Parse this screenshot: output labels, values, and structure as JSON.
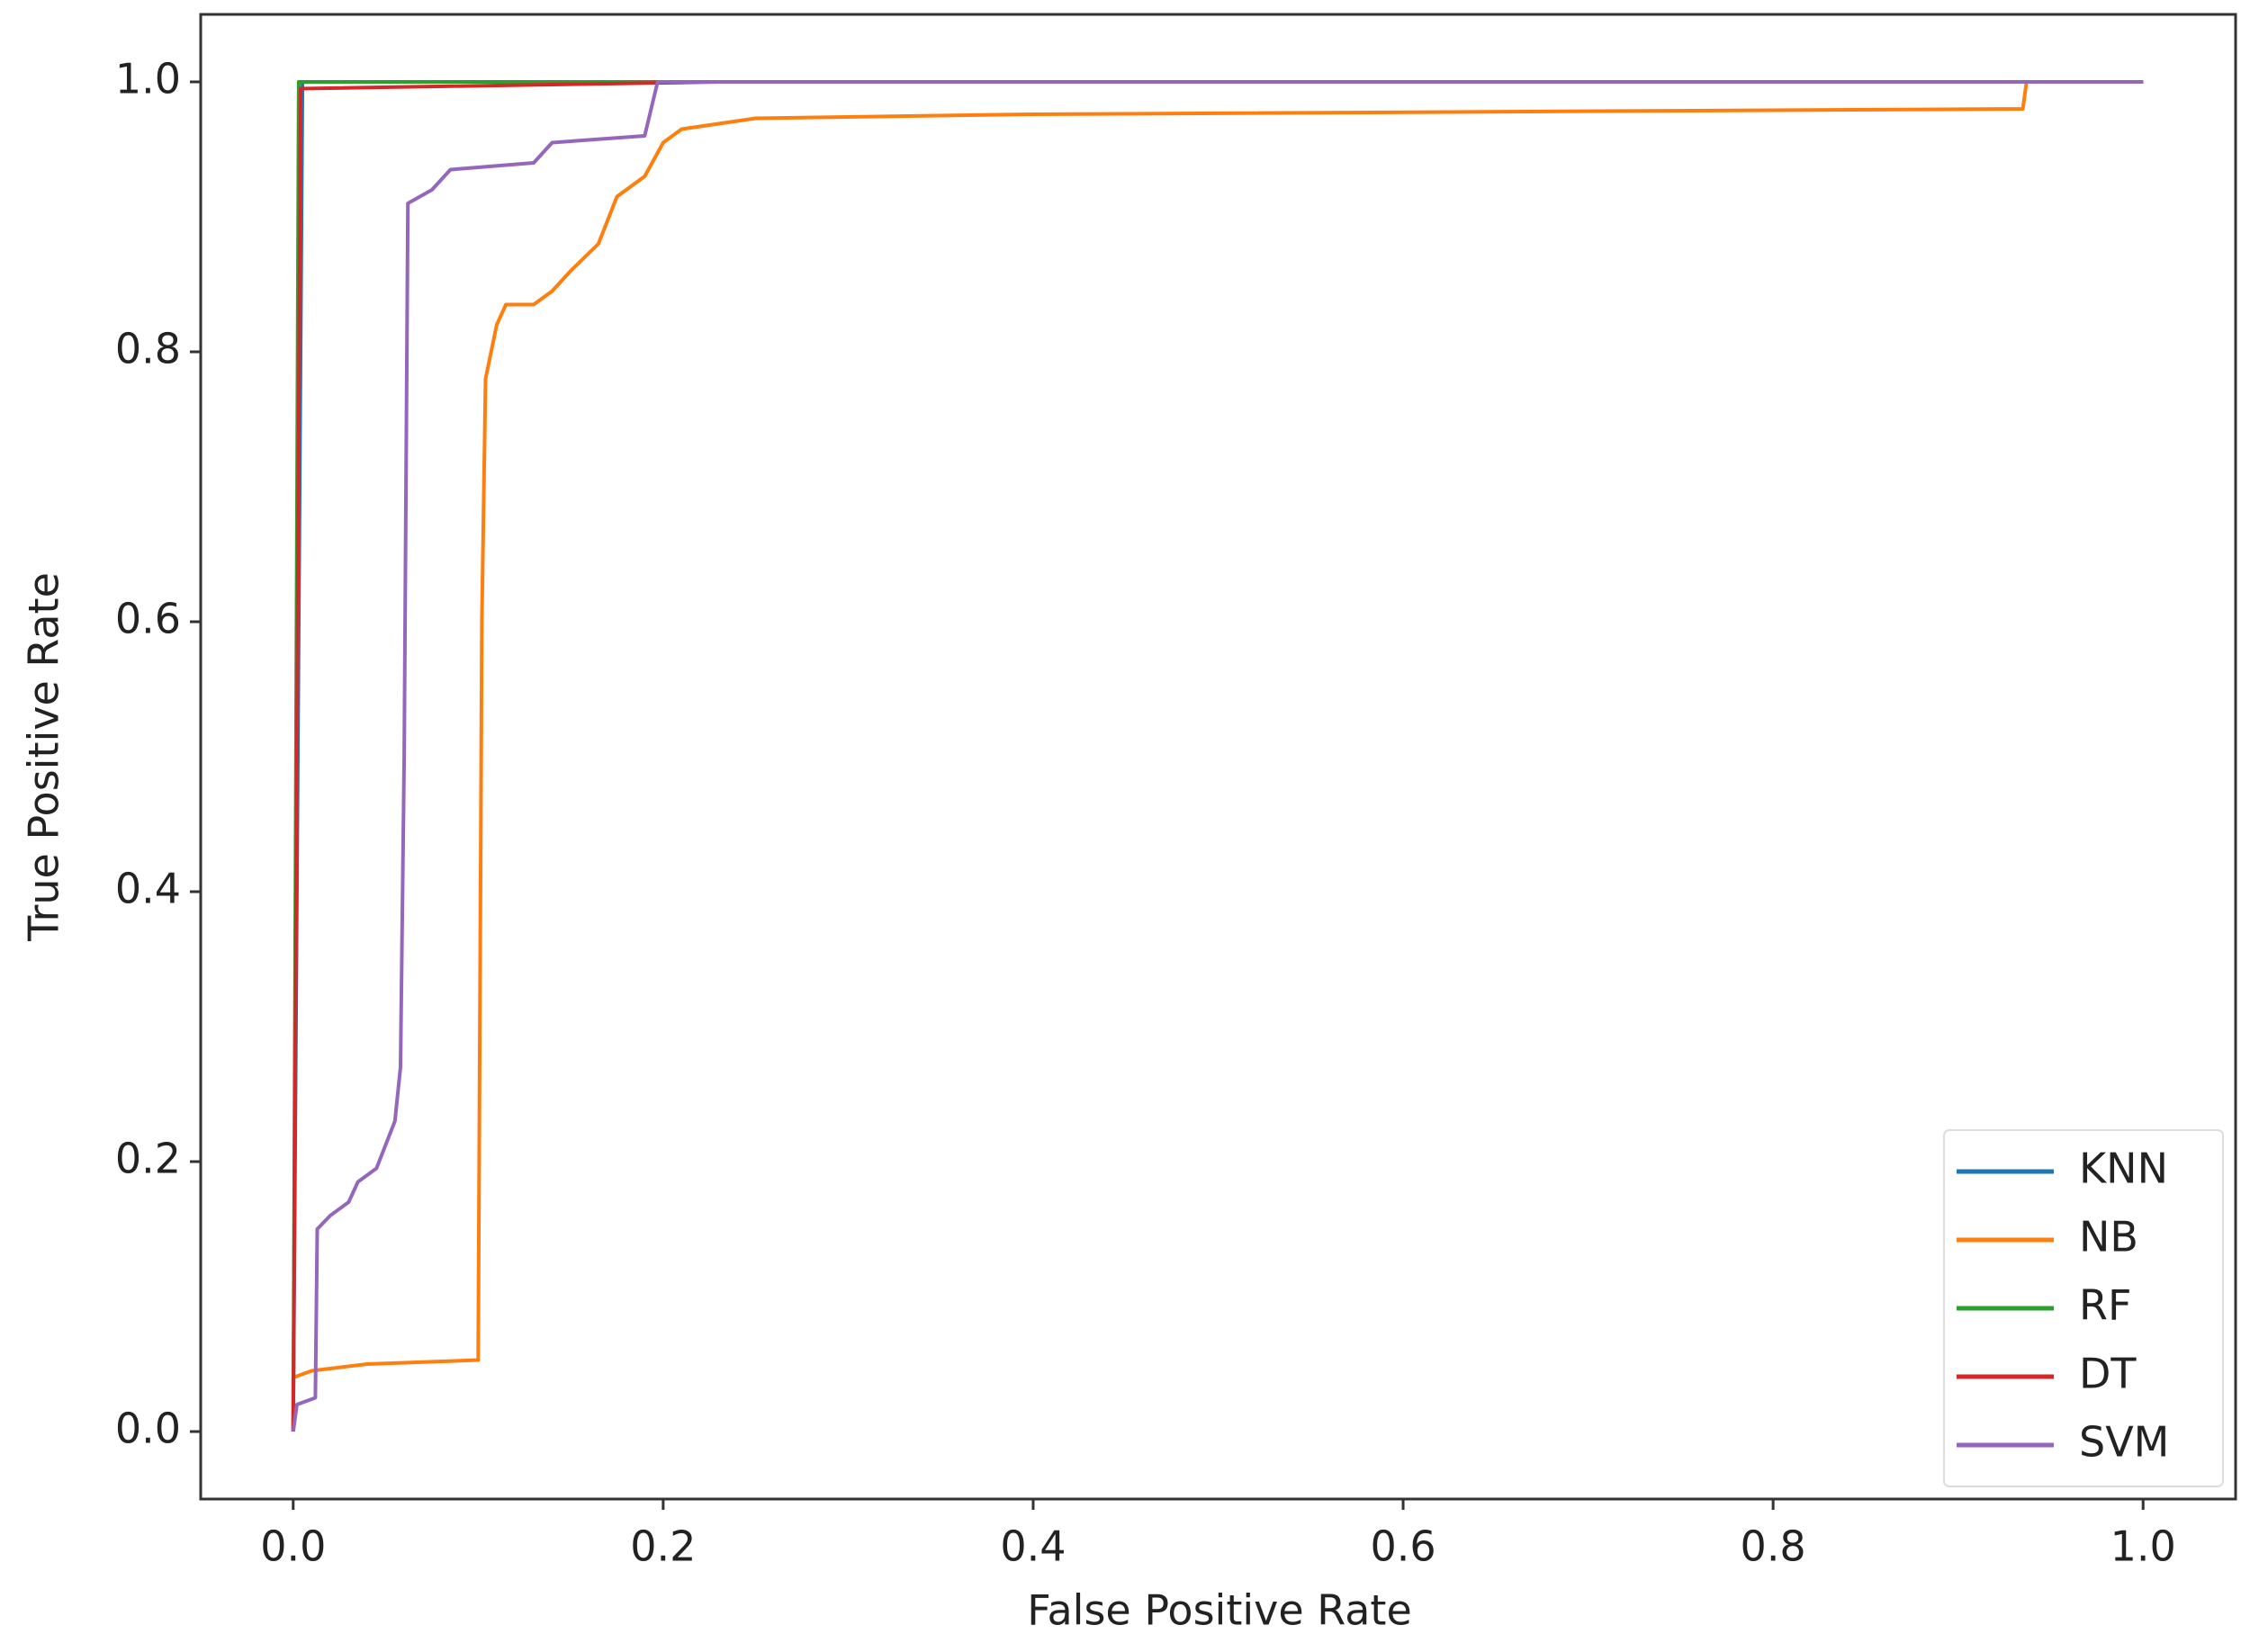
{
  "chart_data": {
    "type": "line",
    "x_label": "False Positive Rate",
    "y_label": "True Positive Rate",
    "xlim": [
      -0.05,
      1.05
    ],
    "ylim": [
      -0.05,
      1.05
    ],
    "xticks": [
      {
        "value": 0,
        "label": "0.0"
      },
      0.2,
      0.4,
      0.6,
      0.8,
      {
        "value": 1,
        "label": "1.0"
      }
    ],
    "yticks": [
      {
        "value": 0,
        "label": "0.0"
      },
      0.2,
      0.4,
      0.6,
      0.8,
      {
        "value": 1,
        "label": "1.0"
      }
    ],
    "grid": false,
    "legend": "lower right",
    "series": [
      {
        "name": "KNN",
        "color": "#1f77b4",
        "x": [
          0,
          0.005,
          1
        ],
        "values": [
          0,
          1,
          1
        ]
      },
      {
        "name": "NB",
        "color": "#ff7f0e",
        "x": [
          0,
          0,
          0.01,
          0.04,
          0.1,
          0.102,
          0.104,
          0.11,
          0.115,
          0.13,
          0.14,
          0.15,
          0.165,
          0.175,
          0.19,
          0.2,
          0.21,
          0.25,
          0.4,
          0.935,
          0.937,
          1
        ],
        "values": [
          0,
          0.04,
          0.045,
          0.05,
          0.053,
          0.6,
          0.78,
          0.82,
          0.835,
          0.835,
          0.845,
          0.86,
          0.88,
          0.915,
          0.93,
          0.955,
          0.965,
          0.973,
          0.976,
          0.98,
          1,
          1
        ]
      },
      {
        "name": "RF",
        "color": "#2ca02c",
        "x": [
          0,
          0.003,
          1
        ],
        "values": [
          0,
          1,
          1
        ]
      },
      {
        "name": "DT",
        "color": "#d62728",
        "x": [
          0,
          0.004,
          0.23,
          1
        ],
        "values": [
          0,
          0.995,
          1,
          1
        ]
      },
      {
        "name": "SVM",
        "color": "#9467bd",
        "x": [
          0,
          0.002,
          0.012,
          0.013,
          0.02,
          0.03,
          0.035,
          0.045,
          0.055,
          0.058,
          0.06,
          0.062,
          0.075,
          0.085,
          0.13,
          0.14,
          0.19,
          0.197,
          1
        ],
        "values": [
          0,
          0.02,
          0.025,
          0.15,
          0.16,
          0.17,
          0.185,
          0.195,
          0.23,
          0.27,
          0.5,
          0.91,
          0.92,
          0.935,
          0.94,
          0.955,
          0.96,
          1,
          1
        ]
      }
    ]
  }
}
